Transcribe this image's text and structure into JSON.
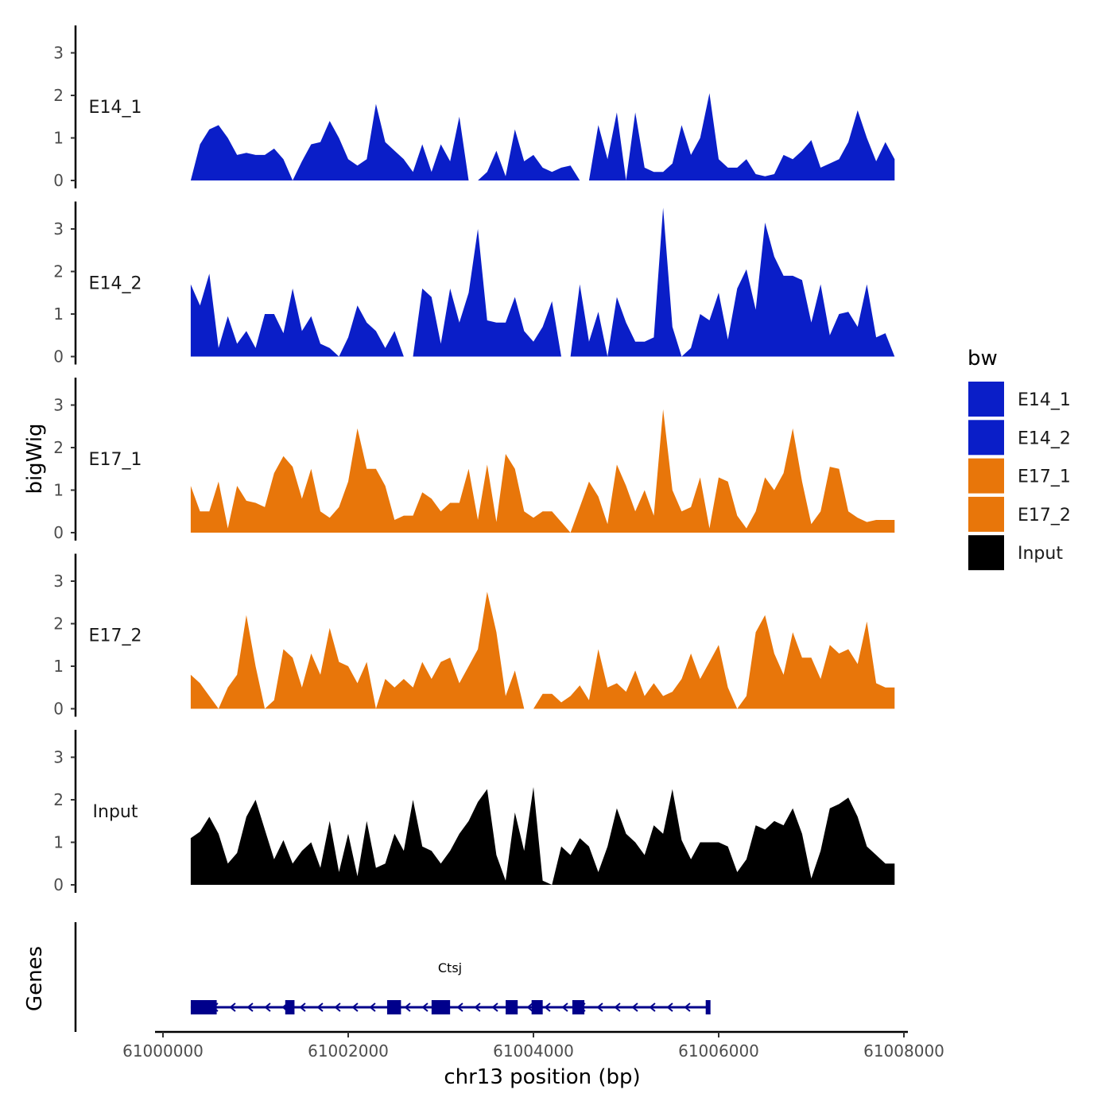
{
  "chart_data": {
    "type": "area",
    "chromosome": "chr13",
    "xlabel": "chr13 position (bp)",
    "ylabel": "bigWig",
    "genes_label": "Genes",
    "xlim": [
      61000000,
      61008000
    ],
    "x_ticks": [
      61000000,
      61002000,
      61004000,
      61006000,
      61008000
    ],
    "x_tick_labels": [
      "61000000",
      "61002000",
      "61004000",
      "61006000",
      "61008000"
    ],
    "ylim": [
      0,
      3.6
    ],
    "y_ticks": [
      0,
      1,
      2,
      3
    ],
    "y_tick_labels": [
      "0",
      "1",
      "2",
      "3"
    ],
    "legend": {
      "title": "bw",
      "entries": [
        {
          "name": "E14_1",
          "color": "#0a1ec8"
        },
        {
          "name": "E14_2",
          "color": "#0a1ec8"
        },
        {
          "name": "E17_1",
          "color": "#e8760a"
        },
        {
          "name": "E17_2",
          "color": "#e8760a"
        },
        {
          "name": "Input",
          "color": "#000000"
        }
      ]
    },
    "x": [
      61000300,
      61000400,
      61000500,
      61000600,
      61000700,
      61000800,
      61000900,
      61001000,
      61001100,
      61001200,
      61001300,
      61001400,
      61001500,
      61001600,
      61001700,
      61001800,
      61001900,
      61002000,
      61002100,
      61002200,
      61002300,
      61002400,
      61002500,
      61002600,
      61002700,
      61002800,
      61002900,
      61003000,
      61003100,
      61003200,
      61003300,
      61003400,
      61003500,
      61003600,
      61003700,
      61003800,
      61003900,
      61004000,
      61004100,
      61004200,
      61004300,
      61004400,
      61004500,
      61004600,
      61004700,
      61004800,
      61004900,
      61005000,
      61005100,
      61005200,
      61005300,
      61005400,
      61005500,
      61005600,
      61005700,
      61005800,
      61005900,
      61006000,
      61006100,
      61006200,
      61006300,
      61006400,
      61006500,
      61006600,
      61006700,
      61006800,
      61006900,
      61007000,
      61007100,
      61007200,
      61007300,
      61007400,
      61007500,
      61007600,
      61007700,
      61007800,
      61007900
    ],
    "series": [
      {
        "name": "E14_1",
        "color": "#0a1ec8",
        "values": [
          0,
          0.85,
          1.2,
          1.3,
          1.0,
          0.6,
          0.65,
          0.6,
          0.6,
          0.75,
          0.5,
          0,
          0.45,
          0.85,
          0.9,
          1.4,
          1.0,
          0.5,
          0.35,
          0.5,
          1.8,
          0.9,
          0.7,
          0.5,
          0.2,
          0.85,
          0.2,
          0.85,
          0.45,
          1.5,
          0,
          0,
          0.2,
          0.7,
          0.1,
          1.2,
          0.45,
          0.6,
          0.3,
          0.2,
          0.3,
          0.35,
          0,
          0,
          1.3,
          0.5,
          1.6,
          0,
          1.6,
          0.3,
          0.2,
          0.2,
          0.4,
          1.3,
          0.6,
          1.0,
          2.05,
          0.5,
          0.3,
          0.3,
          0.5,
          0.15,
          0.1,
          0.15,
          0.6,
          0.5,
          0.7,
          0.95,
          0.3,
          0.4,
          0.5,
          0.9,
          1.65,
          1.0,
          0.45,
          0.9,
          0.5
        ]
      },
      {
        "name": "E14_2",
        "color": "#0a1ec8",
        "values": [
          1.7,
          1.2,
          1.95,
          0.2,
          0.95,
          0.3,
          0.6,
          0.2,
          1.0,
          1.0,
          0.55,
          1.6,
          0.6,
          0.95,
          0.3,
          0.2,
          0,
          0.45,
          1.2,
          0.8,
          0.6,
          0.2,
          0.6,
          0,
          0,
          1.6,
          1.4,
          0.3,
          1.6,
          0.8,
          1.5,
          3.0,
          0.85,
          0.8,
          0.8,
          1.4,
          0.6,
          0.35,
          0.7,
          1.3,
          0,
          0,
          1.7,
          0.35,
          1.05,
          0,
          1.4,
          0.8,
          0.35,
          0.35,
          0.45,
          3.5,
          0.7,
          0,
          0.2,
          1.0,
          0.85,
          1.5,
          0.4,
          1.6,
          2.05,
          1.1,
          3.15,
          2.35,
          1.9,
          1.9,
          1.8,
          0.8,
          1.7,
          0.5,
          1.0,
          1.05,
          0.7,
          1.7,
          0.45,
          0.55,
          0
        ]
      },
      {
        "name": "E17_1",
        "color": "#e8760a",
        "values": [
          1.1,
          0.5,
          0.5,
          1.2,
          0.1,
          1.1,
          0.75,
          0.7,
          0.6,
          1.4,
          1.8,
          1.55,
          0.8,
          1.5,
          0.5,
          0.35,
          0.6,
          1.2,
          2.45,
          1.5,
          1.5,
          1.1,
          0.3,
          0.4,
          0.4,
          0.95,
          0.8,
          0.5,
          0.7,
          0.7,
          1.5,
          0.3,
          1.6,
          0.25,
          1.85,
          1.5,
          0.5,
          0.35,
          0.5,
          0.5,
          0.25,
          0,
          0.6,
          1.2,
          0.85,
          0.2,
          1.6,
          1.1,
          0.5,
          1.0,
          0.4,
          2.9,
          1.0,
          0.5,
          0.6,
          1.3,
          0.1,
          1.3,
          1.2,
          0.4,
          0.1,
          0.5,
          1.3,
          1.0,
          1.4,
          2.45,
          1.2,
          0.2,
          0.5,
          1.55,
          1.5,
          0.5,
          0.35,
          0.25,
          0.3,
          0.3,
          0.3
        ]
      },
      {
        "name": "E17_2",
        "color": "#e8760a",
        "values": [
          0.8,
          0.6,
          0.3,
          0,
          0.5,
          0.8,
          2.2,
          1.0,
          0,
          0.2,
          1.4,
          1.2,
          0.5,
          1.3,
          0.8,
          1.9,
          1.1,
          1.0,
          0.6,
          1.1,
          0,
          0.7,
          0.5,
          0.7,
          0.5,
          1.1,
          0.7,
          1.1,
          1.2,
          0.6,
          1.0,
          1.4,
          2.75,
          1.8,
          0.3,
          0.9,
          0,
          0,
          0.35,
          0.35,
          0.15,
          0.3,
          0.55,
          0.2,
          1.4,
          0.5,
          0.6,
          0.4,
          0.9,
          0.3,
          0.6,
          0.3,
          0.4,
          0.7,
          1.3,
          0.7,
          1.1,
          1.5,
          0.5,
          0,
          0.3,
          1.8,
          2.2,
          1.3,
          0.8,
          1.8,
          1.2,
          1.2,
          0.7,
          1.5,
          1.3,
          1.4,
          1.05,
          2.05,
          0.6,
          0.5,
          0.5
        ]
      },
      {
        "name": "Input",
        "color": "#000000",
        "values": [
          1.1,
          1.25,
          1.6,
          1.2,
          0.5,
          0.75,
          1.6,
          2.0,
          1.3,
          0.6,
          1.05,
          0.5,
          0.8,
          1.0,
          0.4,
          1.5,
          0.3,
          1.2,
          0.2,
          1.5,
          0.4,
          0.5,
          1.2,
          0.8,
          2.0,
          0.9,
          0.8,
          0.5,
          0.8,
          1.2,
          1.5,
          1.95,
          2.25,
          0.7,
          0.1,
          1.7,
          0.8,
          2.3,
          0.1,
          0,
          0.9,
          0.7,
          1.1,
          0.9,
          0.3,
          0.9,
          1.8,
          1.2,
          1.0,
          0.7,
          1.4,
          1.2,
          2.25,
          1.05,
          0.6,
          1.0,
          1.0,
          1.0,
          0.9,
          0.3,
          0.6,
          1.4,
          1.3,
          1.5,
          1.4,
          1.8,
          1.2,
          0.15,
          0.8,
          1.8,
          1.9,
          2.05,
          1.6,
          0.9,
          0.7,
          0.5,
          0.5
        ]
      }
    ],
    "gene": {
      "name": "Ctsj",
      "strand": "-",
      "start": 61000300,
      "end": 61005900,
      "color": "#00008b",
      "exons": [
        [
          61000300,
          61000580
        ],
        [
          61001320,
          61001420
        ],
        [
          61002420,
          61002570
        ],
        [
          61002900,
          61003100
        ],
        [
          61003700,
          61003830
        ],
        [
          61003980,
          61004100
        ],
        [
          61004420,
          61004550
        ],
        [
          61005860,
          61005900
        ]
      ]
    }
  }
}
